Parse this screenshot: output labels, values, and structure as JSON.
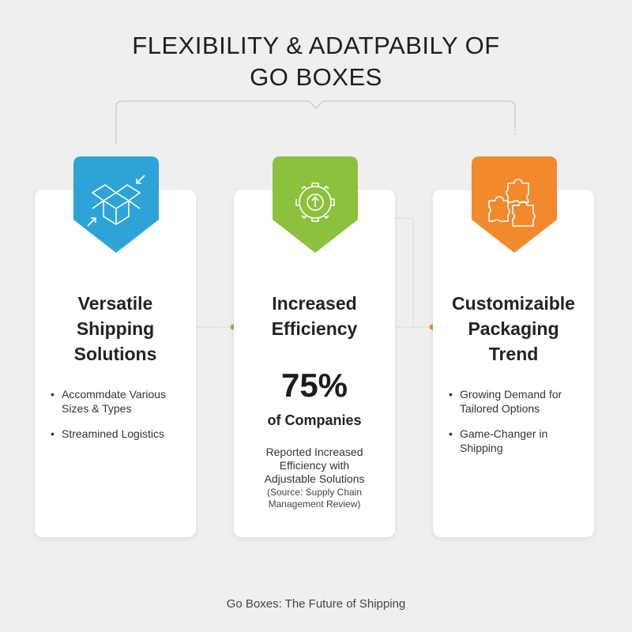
{
  "title": {
    "line1": "FLEXIBILITY & ADATPABILY OF",
    "line2": "GO BOXES"
  },
  "colors": {
    "blue": "#2ea3d8",
    "green": "#8dc03c",
    "orange": "#f2892c"
  },
  "cards": [
    {
      "icon": "open-box-icon",
      "heading": [
        "Versatile",
        "Shipping",
        "Solutions"
      ],
      "bullets": [
        "Accommdate Various Sizes & Types",
        "Streamined Logistics"
      ]
    },
    {
      "icon": "gear-arrow-up-icon",
      "heading": [
        "Increased",
        "Efficiency"
      ],
      "stat": "75%",
      "stat_sub": "of Companies",
      "description": "Reported Increased Efficiency with Adjustable Solutions",
      "source": "(Source: Supply Chain Management Review)"
    },
    {
      "icon": "puzzle-icon",
      "heading": [
        "Customizaible",
        "Packaging",
        "Trend"
      ],
      "bullets": [
        "Growing Demand for Tailored Options",
        "Game-Changer in Shipping"
      ]
    }
  ],
  "footer": "Go Boxes: The Future of Shipping"
}
